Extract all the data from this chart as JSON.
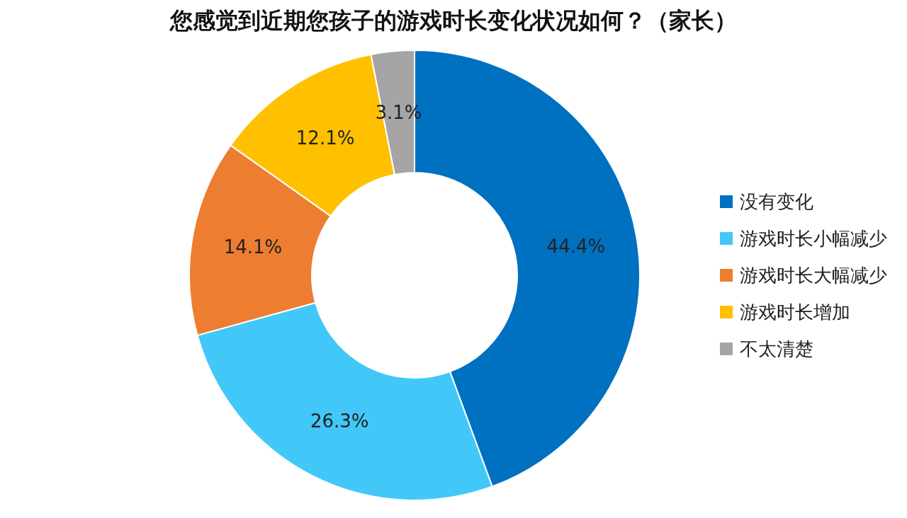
{
  "chart_data": {
    "type": "donut",
    "title": "您感觉到近期您孩子的游戏时长变化状况如何？（家长）",
    "categories": [
      "没有变化",
      "游戏时长小幅减少",
      "游戏时长大幅减少",
      "游戏时长增加",
      "不太清楚"
    ],
    "values": [
      44.4,
      26.3,
      14.1,
      12.1,
      3.1
    ],
    "colors": [
      "#0070c0",
      "#41c8f8",
      "#ed7d31",
      "#ffc000",
      "#a5a5a5"
    ],
    "value_labels": [
      "44.4%",
      "26.3%",
      "14.1%",
      "12.1%",
      "3.1%"
    ],
    "legend": "right"
  }
}
